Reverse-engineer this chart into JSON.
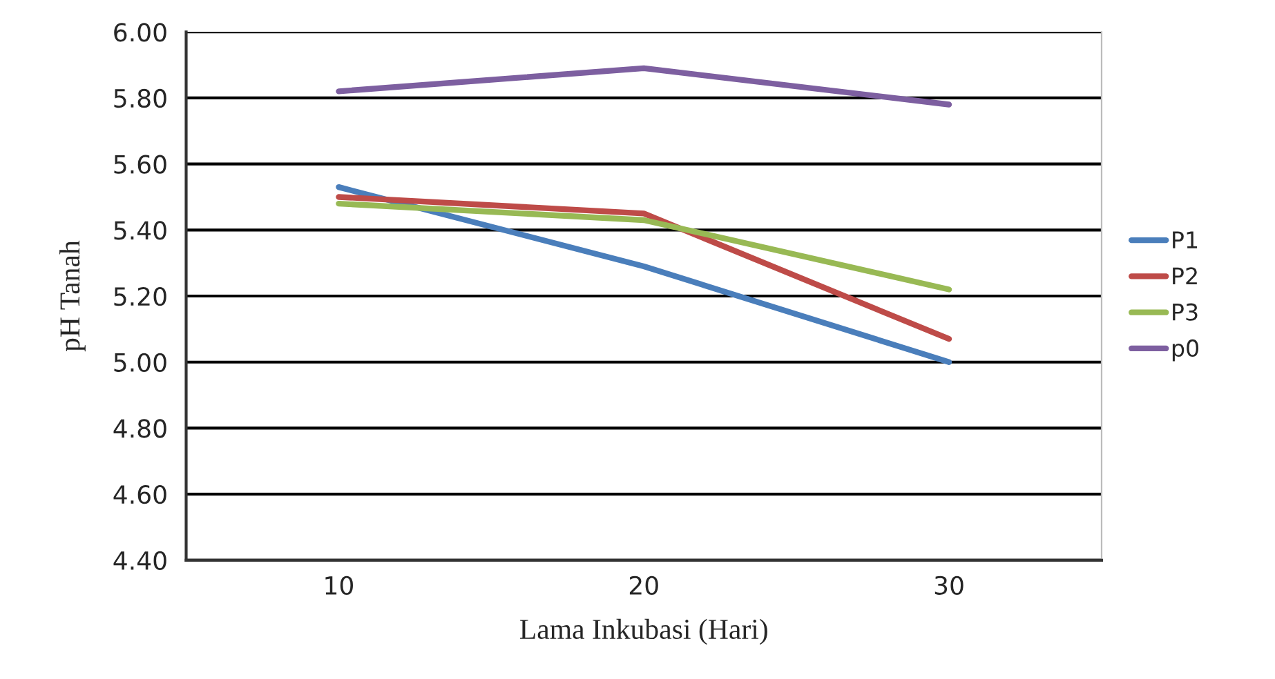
{
  "chart_data": {
    "type": "line",
    "xlabel": "Lama Inkubasi (Hari)",
    "ylabel": "pH Tanah",
    "categories": [
      "10",
      "20",
      "30"
    ],
    "series": [
      {
        "name": "P1",
        "color": "#4a7ebb",
        "values": [
          5.53,
          5.29,
          5.0
        ]
      },
      {
        "name": "P2",
        "color": "#be4b48",
        "values": [
          5.5,
          5.45,
          5.07
        ]
      },
      {
        "name": "P3",
        "color": "#98b954",
        "values": [
          5.48,
          5.43,
          5.22
        ]
      },
      {
        "name": "p0",
        "color": "#7d5fa0",
        "values": [
          5.82,
          5.89,
          5.78
        ]
      }
    ],
    "ylim": [
      4.4,
      6.0
    ],
    "yticks": [
      {
        "value": 4.4,
        "label": "4.40"
      },
      {
        "value": 4.6,
        "label": "4.60"
      },
      {
        "value": 4.8,
        "label": "4.80"
      },
      {
        "value": 5.0,
        "label": "5.00"
      },
      {
        "value": 5.2,
        "label": "5.20"
      },
      {
        "value": 5.4,
        "label": "5.40"
      },
      {
        "value": 5.6,
        "label": "5.60"
      },
      {
        "value": 5.8,
        "label": "5.80"
      },
      {
        "value": 6.0,
        "label": "6.00"
      }
    ],
    "grid": "y",
    "legend": "right",
    "marker": "none",
    "line_style": "solid"
  }
}
